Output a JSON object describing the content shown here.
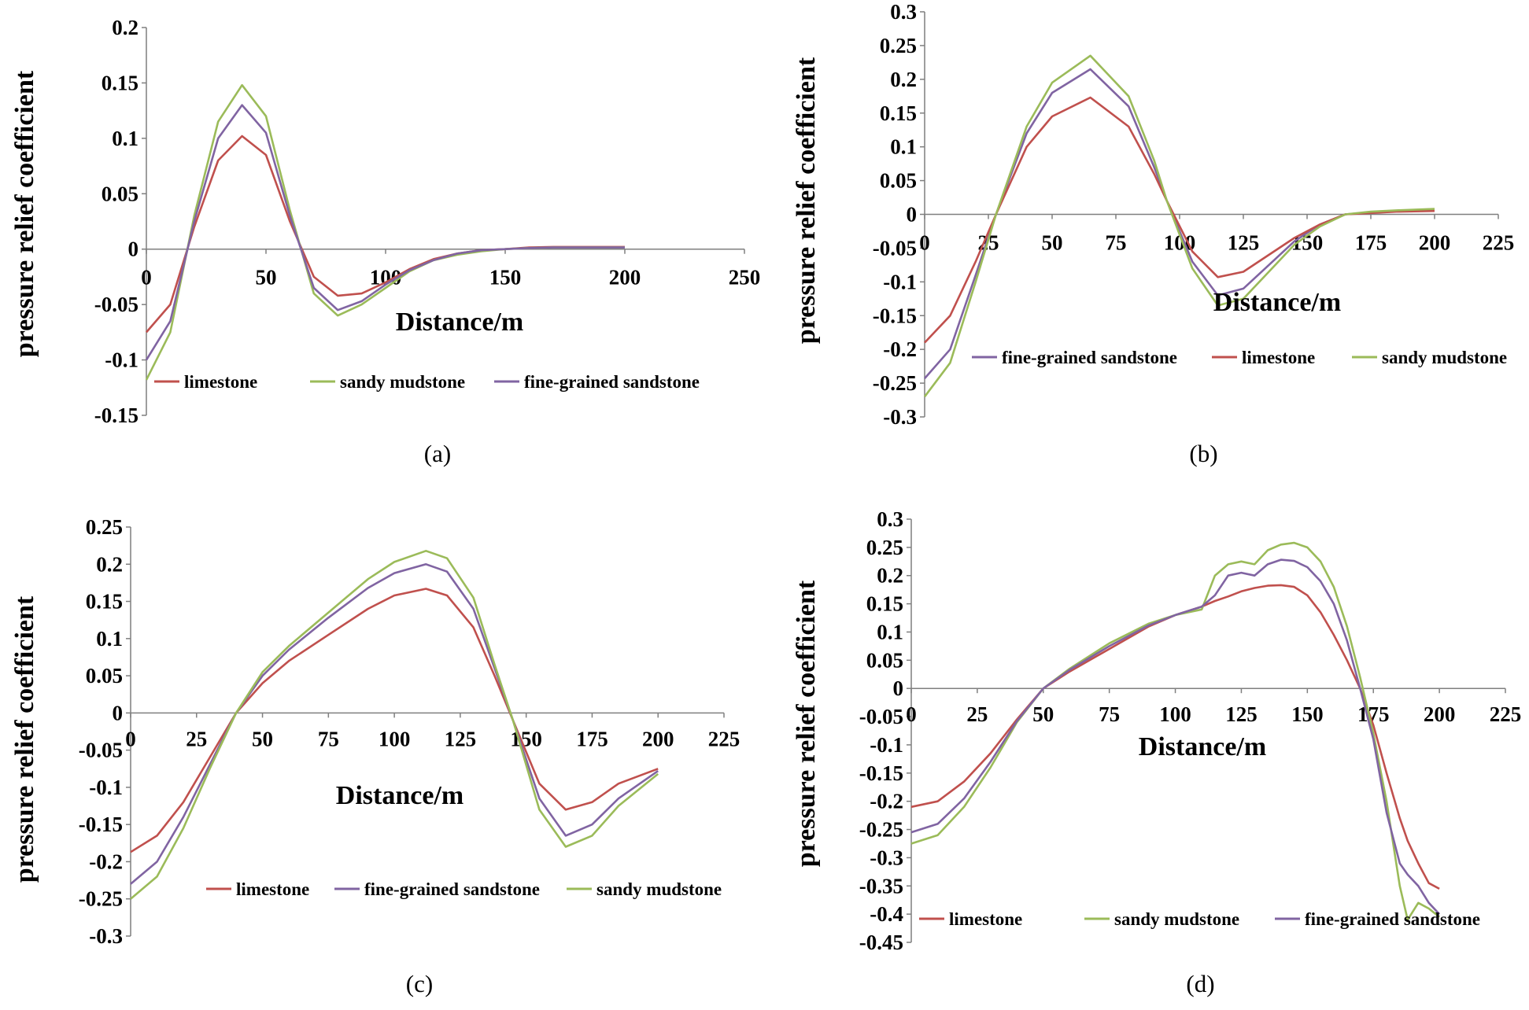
{
  "colors": {
    "limestone": "#c0504d",
    "sandy mudstone": "#9bbb59",
    "fine-grained sandstone": "#8064a2"
  },
  "chart_data": [
    {
      "type": "line",
      "caption": "(a)",
      "xlabel": "Distance/m",
      "ylabel": "pressure relief coefficient",
      "xlim": [
        0,
        250
      ],
      "ylim": [
        -0.15,
        0.2
      ],
      "xticks": [
        "0",
        "50",
        "100",
        "150",
        "200",
        "250"
      ],
      "yticks": [
        "0.2",
        "0.15",
        "0.1",
        "0.05",
        "0",
        "-0.05",
        "-0.1",
        "-0.15"
      ],
      "grid": false,
      "legend": "bottom",
      "x": [
        0,
        10,
        20,
        30,
        40,
        50,
        60,
        70,
        80,
        90,
        100,
        110,
        120,
        130,
        140,
        150,
        160,
        170,
        180,
        190,
        200
      ],
      "series": [
        {
          "name": "limestone",
          "values": [
            -0.075,
            -0.05,
            0.02,
            0.08,
            0.102,
            0.085,
            0.025,
            -0.025,
            -0.042,
            -0.04,
            -0.03,
            -0.018,
            -0.009,
            -0.004,
            -0.001,
            0.0,
            0.0015,
            0.002,
            0.002,
            0.002,
            0.002
          ]
        },
        {
          "name": "sandy mudstone",
          "values": [
            -0.118,
            -0.075,
            0.03,
            0.115,
            0.148,
            0.12,
            0.035,
            -0.04,
            -0.06,
            -0.05,
            -0.035,
            -0.02,
            -0.01,
            -0.005,
            -0.002,
            0.0,
            0.001,
            0.0015,
            0.0015,
            0.0015,
            0.0015
          ]
        },
        {
          "name": "fine-grained sandstone",
          "values": [
            -0.1,
            -0.065,
            0.025,
            0.1,
            0.13,
            0.105,
            0.03,
            -0.035,
            -0.055,
            -0.047,
            -0.032,
            -0.019,
            -0.01,
            -0.004,
            -0.001,
            0.0,
            0.001,
            0.0015,
            0.0015,
            0.0015,
            0.0015
          ]
        }
      ]
    },
    {
      "type": "line",
      "caption": "(b)",
      "xlabel": "Distance/m",
      "ylabel": "pressure relief coefficient",
      "xlim": [
        0,
        225
      ],
      "ylim": [
        -0.3,
        0.3
      ],
      "xticks": [
        "0",
        "25",
        "50",
        "75",
        "100",
        "125",
        "150",
        "175",
        "200",
        "225"
      ],
      "yticks": [
        "0.3",
        "0.25",
        "0.2",
        "0.15",
        "0.1",
        "0.05",
        "0",
        "-0.05",
        "-0.1",
        "-0.15",
        "-0.2",
        "-0.25",
        "-0.3"
      ],
      "grid": false,
      "legend": "bottom",
      "x": [
        0,
        10,
        20,
        28,
        40,
        50,
        65,
        80,
        90,
        95,
        105,
        115,
        125,
        135,
        145,
        155,
        165,
        175,
        185,
        200
      ],
      "series": [
        {
          "name": "fine-grained sandstone",
          "values": [
            -0.243,
            -0.2,
            -0.09,
            0.0,
            0.12,
            0.18,
            0.215,
            0.16,
            0.07,
            0.02,
            -0.07,
            -0.12,
            -0.11,
            -0.075,
            -0.04,
            -0.015,
            0.0,
            0.003,
            0.005,
            0.006
          ]
        },
        {
          "name": "limestone",
          "values": [
            -0.19,
            -0.15,
            -0.07,
            0.0,
            0.1,
            0.145,
            0.173,
            0.13,
            0.06,
            0.02,
            -0.055,
            -0.093,
            -0.085,
            -0.06,
            -0.035,
            -0.015,
            0.0,
            0.002,
            0.004,
            0.005
          ]
        },
        {
          "name": "sandy mudstone",
          "values": [
            -0.27,
            -0.22,
            -0.1,
            0.0,
            0.13,
            0.195,
            0.235,
            0.175,
            0.08,
            0.02,
            -0.08,
            -0.135,
            -0.125,
            -0.085,
            -0.045,
            -0.018,
            0.0,
            0.004,
            0.006,
            0.008
          ]
        }
      ]
    },
    {
      "type": "line",
      "caption": "(c)",
      "xlabel": "Distance/m",
      "ylabel": "pressure relief coefficient",
      "xlim": [
        0,
        225
      ],
      "ylim": [
        -0.3,
        0.25
      ],
      "xticks": [
        "0",
        "25",
        "50",
        "75",
        "100",
        "125",
        "150",
        "175",
        "200",
        "225"
      ],
      "yticks": [
        "0.25",
        "0.2",
        "0.15",
        "0.1",
        "0.05",
        "0",
        "-0.05",
        "-0.1",
        "-0.15",
        "-0.2",
        "-0.25",
        "-0.3"
      ],
      "grid": false,
      "legend": "bottom",
      "x": [
        0,
        10,
        20,
        30,
        40,
        50,
        60,
        75,
        90,
        100,
        112,
        120,
        130,
        138,
        145,
        155,
        165,
        175,
        185,
        200
      ],
      "series": [
        {
          "name": "limestone",
          "values": [
            -0.187,
            -0.165,
            -0.12,
            -0.06,
            0.0,
            0.04,
            0.07,
            0.105,
            0.14,
            0.158,
            0.167,
            0.158,
            0.115,
            0.05,
            -0.01,
            -0.095,
            -0.13,
            -0.12,
            -0.095,
            -0.075
          ]
        },
        {
          "name": "fine-grained sandstone",
          "values": [
            -0.23,
            -0.2,
            -0.14,
            -0.07,
            0.0,
            0.05,
            0.085,
            0.128,
            0.168,
            0.188,
            0.2,
            0.19,
            0.14,
            0.06,
            -0.01,
            -0.115,
            -0.165,
            -0.15,
            -0.115,
            -0.078
          ]
        },
        {
          "name": "sandy mudstone",
          "values": [
            -0.25,
            -0.22,
            -0.155,
            -0.075,
            0.0,
            0.055,
            0.09,
            0.135,
            0.18,
            0.203,
            0.218,
            0.208,
            0.155,
            0.065,
            -0.01,
            -0.13,
            -0.18,
            -0.165,
            -0.125,
            -0.082
          ]
        }
      ]
    },
    {
      "type": "line",
      "caption": "(d)",
      "xlabel": "Distance/m",
      "ylabel": "pressure relief coefficient",
      "xlim": [
        0,
        225
      ],
      "ylim": [
        -0.45,
        0.3
      ],
      "xticks": [
        "0",
        "25",
        "50",
        "75",
        "100",
        "125",
        "150",
        "175",
        "200",
        "225"
      ],
      "yticks": [
        "0.3",
        "0.25",
        "0.2",
        "0.15",
        "0.1",
        "0.05",
        "0",
        "-0.05",
        "-0.1",
        "-0.15",
        "-0.2",
        "-0.25",
        "-0.3",
        "-0.35",
        "-0.4",
        "-0.45"
      ],
      "grid": false,
      "legend": "bottom",
      "x": [
        0,
        10,
        20,
        30,
        40,
        50,
        60,
        75,
        90,
        100,
        110,
        115,
        120,
        125,
        130,
        135,
        140,
        145,
        150,
        155,
        160,
        165,
        170,
        175,
        180,
        185,
        188,
        192,
        196,
        200
      ],
      "series": [
        {
          "name": "limestone",
          "values": [
            -0.21,
            -0.2,
            -0.165,
            -0.115,
            -0.055,
            0.0,
            0.03,
            0.07,
            0.11,
            0.13,
            0.145,
            0.155,
            0.163,
            0.172,
            0.178,
            0.182,
            0.183,
            0.18,
            0.165,
            0.135,
            0.095,
            0.05,
            0.0,
            -0.065,
            -0.15,
            -0.23,
            -0.27,
            -0.31,
            -0.345,
            -0.355
          ]
        },
        {
          "name": "sandy mudstone",
          "values": [
            -0.275,
            -0.26,
            -0.21,
            -0.14,
            -0.06,
            0.0,
            0.035,
            0.08,
            0.115,
            0.13,
            0.14,
            0.2,
            0.22,
            0.225,
            0.22,
            0.245,
            0.255,
            0.258,
            0.25,
            0.225,
            0.18,
            0.11,
            0.02,
            -0.08,
            -0.2,
            -0.35,
            -0.41,
            -0.38,
            -0.39,
            -0.405
          ]
        },
        {
          "name": "fine-grained sandstone",
          "values": [
            -0.255,
            -0.24,
            -0.195,
            -0.13,
            -0.058,
            0.0,
            0.033,
            0.075,
            0.112,
            0.13,
            0.145,
            0.165,
            0.2,
            0.205,
            0.2,
            0.22,
            0.228,
            0.226,
            0.215,
            0.19,
            0.15,
            0.085,
            0.0,
            -0.09,
            -0.22,
            -0.31,
            -0.33,
            -0.35,
            -0.38,
            -0.4
          ]
        }
      ]
    }
  ]
}
